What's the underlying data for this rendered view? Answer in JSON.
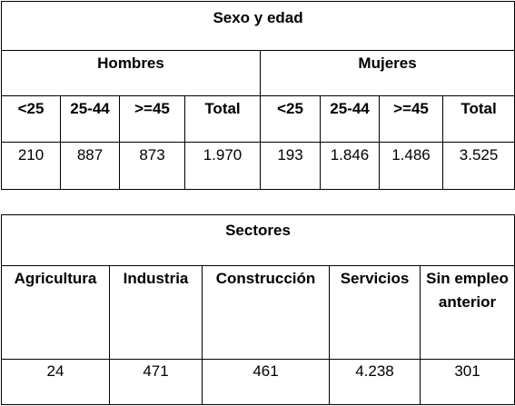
{
  "sexo_edad": {
    "title": "Sexo y edad",
    "groups": [
      {
        "label": "Hombres"
      },
      {
        "label": "Mujeres"
      }
    ],
    "headers": [
      "<25",
      "25-44",
      ">=45",
      "Total",
      "<25",
      "25-44",
      ">=45",
      "Total"
    ],
    "values": [
      "210",
      "887",
      "873",
      "1.970",
      "193",
      "1.846",
      "1.486",
      "3.525"
    ]
  },
  "sectores": {
    "title": "Sectores",
    "headers": [
      "Agricultura",
      "Industria",
      "Construcción",
      "Servicios",
      "Sin empleo anterior"
    ],
    "values": [
      "24",
      "471",
      "461",
      "4.238",
      "301"
    ]
  }
}
